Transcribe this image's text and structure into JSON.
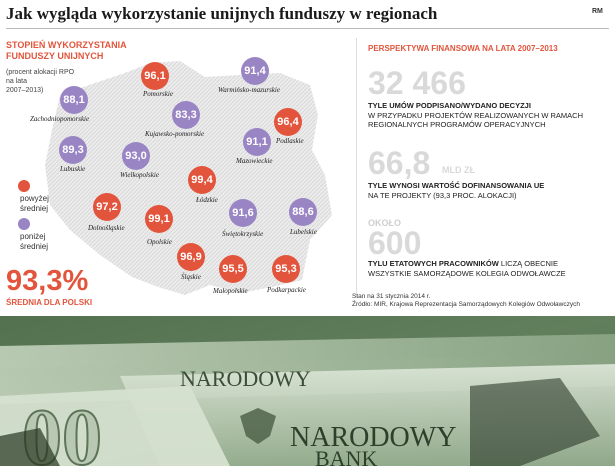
{
  "header": {
    "title": "Jak wygląda wykorzystanie unijnych funduszy w regionach",
    "logo": "RM"
  },
  "left": {
    "heading_line1": "STOPIEŃ WYKORZYSTANIA",
    "heading_line2": "FUNDUSZY UNIJNYCH",
    "subheading_line1": "(procent alokacji RPO",
    "subheading_line2": "na lata",
    "subheading_line3": "2007–2013)",
    "legend": {
      "above_line1": "powyżej",
      "above_line2": "średniej",
      "below_line1": "poniżej",
      "below_line2": "średniej"
    },
    "average_value": "93,3%",
    "average_label": "ŚREDNIA DLA POLSKI"
  },
  "regions": [
    {
      "name": "Pomorskie",
      "value": "96,1",
      "status": "above"
    },
    {
      "name": "Warmińsko-mazurskie",
      "value": "91,4",
      "status": "below"
    },
    {
      "name": "Zachodniopomorskie",
      "value": "88,1",
      "status": "below"
    },
    {
      "name": "Kujawsko-pomorskie",
      "value": "83,3",
      "status": "below"
    },
    {
      "name": "Podlaskie",
      "value": "96,4",
      "status": "above"
    },
    {
      "name": "Lubuskie",
      "value": "89,3",
      "status": "below"
    },
    {
      "name": "Wielkopolskie",
      "value": "93,0",
      "status": "below"
    },
    {
      "name": "Mazowieckie",
      "value": "91,1",
      "status": "below"
    },
    {
      "name": "Łódzkie",
      "value": "99,4",
      "status": "above"
    },
    {
      "name": "Dolnośląskie",
      "value": "97,2",
      "status": "above"
    },
    {
      "name": "Opolskie",
      "value": "99,1",
      "status": "above"
    },
    {
      "name": "Świętokrzyskie",
      "value": "91,6",
      "status": "below"
    },
    {
      "name": "Lubelskie",
      "value": "88,6",
      "status": "below"
    },
    {
      "name": "Śląskie",
      "value": "96,9",
      "status": "above"
    },
    {
      "name": "Małopolskie",
      "value": "95,5",
      "status": "above"
    },
    {
      "name": "Podkarpackie",
      "value": "95,3",
      "status": "above"
    }
  ],
  "right": {
    "heading": "PERSPEKTYWA FINANSOWA NA LATA 2007–2013",
    "stat1": {
      "value": "32 466",
      "bold_text": "TYLE UMÓW PODPISANO/WYDANO DECYZJI",
      "line2": "W PRZYPADKU PROJEKTÓW REALIZOWANYCH W RAMACH",
      "line3": "REGIONALNYCH PROGRAMÓW OPERACYJNYCH"
    },
    "stat2": {
      "value": "66,8",
      "unit": "MLD ZŁ",
      "bold_text": "TYLE WYNOSI WARTOŚĆ DOFINANSOWANIA UE",
      "line2": "NA TE PROJEKTY (93,3 PROC. ALOKACJI)"
    },
    "stat3": {
      "prefix": "OKOŁO",
      "value": "600",
      "bold_text": "TYLU ETATOWYCH PRACOWNIKÓW",
      "rest_text": " LICZĄ OBECNIE",
      "line2": "WSZYSTKIE SAMORZĄDOWE KOLEGIA ODWOŁAWCZE"
    },
    "source_line1": "Stan na 31 stycznia 2014 r.",
    "source_line2": "Źródło: MIR, Krajowa Reprezentacja Samorządowych Kolegiów Odwoławczych"
  },
  "photo": {
    "text1": "NARODOWY",
    "text2": "NARODOWY",
    "text3": "BANK"
  },
  "colors": {
    "above": "#e2553c",
    "below": "#9a85c4",
    "accent": "#e2553c"
  }
}
